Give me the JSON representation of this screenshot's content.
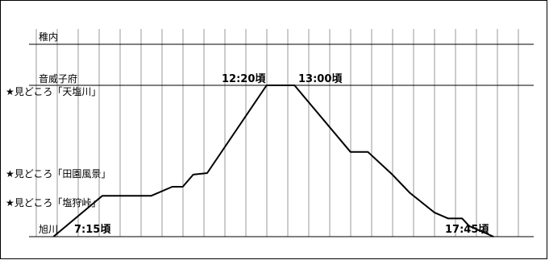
{
  "chart_data": {
    "type": "line",
    "title": "",
    "xlabel": "",
    "ylabel": "",
    "grid": true,
    "stations": [
      {
        "name": "稚内"
      },
      {
        "name": "音威子府"
      },
      {
        "name": "旭川"
      }
    ],
    "points_of_interest": [
      {
        "label": "★見どころ「天塩川」"
      },
      {
        "label": "★見どころ「田園風景」"
      },
      {
        "label": "★見どころ「塩狩峠」"
      }
    ],
    "time_labels": [
      {
        "text": "7:15頃"
      },
      {
        "text": "12:20頃"
      },
      {
        "text": "13:00頃"
      },
      {
        "text": "17:45頃"
      }
    ],
    "series": [
      {
        "values": [
          {
            "time": "7:15",
            "level": 0
          },
          {
            "time": "8:25",
            "level": 0.27
          },
          {
            "time": "9:35",
            "level": 0.27
          },
          {
            "time": "10:05",
            "level": 0.33
          },
          {
            "time": "10:20",
            "level": 0.33
          },
          {
            "time": "10:35",
            "level": 0.41
          },
          {
            "time": "10:55",
            "level": 0.42
          },
          {
            "time": "12:20",
            "level": 1
          },
          {
            "time": "13:00",
            "level": 1
          },
          {
            "time": "14:20",
            "level": 0.56
          },
          {
            "time": "14:45",
            "level": 0.56
          },
          {
            "time": "15:20",
            "level": 0.41
          },
          {
            "time": "15:45",
            "level": 0.29
          },
          {
            "time": "16:20",
            "level": 0.16
          },
          {
            "time": "16:40",
            "level": 0.12
          },
          {
            "time": "17:00",
            "level": 0.12
          },
          {
            "time": "17:10",
            "level": 0.07
          },
          {
            "time": "17:45",
            "level": 0
          }
        ]
      }
    ]
  }
}
